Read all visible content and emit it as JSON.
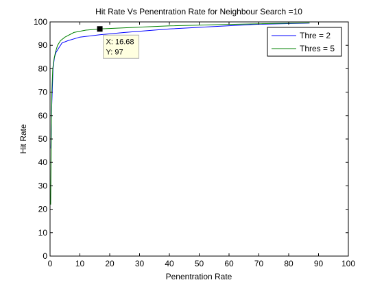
{
  "chart_data": {
    "type": "line",
    "title": "Hit Rate Vs Penentration Rate for Neighbour Search =10",
    "xlabel": "Penentration Rate",
    "ylabel": "Hit Rate",
    "xlim": [
      0,
      100
    ],
    "ylim": [
      0,
      100
    ],
    "xticks": [
      "0",
      "10",
      "20",
      "30",
      "40",
      "50",
      "60",
      "70",
      "80",
      "90",
      "100"
    ],
    "yticks": [
      "0",
      "10",
      "20",
      "30",
      "40",
      "50",
      "60",
      "70",
      "80",
      "90",
      "100"
    ],
    "grid": false,
    "legend_position": "top-right",
    "series": [
      {
        "name": "Thre = 2",
        "color": "#0000ff",
        "x": [
          0.3,
          0.5,
          0.8,
          1.0,
          1.5,
          2.0,
          3.0,
          4.0,
          6.0,
          10.0,
          16.68,
          25.0,
          40.0,
          55.0,
          70.0,
          87.0
        ],
        "y": [
          46,
          62,
          73,
          80,
          85,
          87,
          89,
          91,
          92,
          93.5,
          94.5,
          95.5,
          97,
          98,
          99,
          99.5
        ]
      },
      {
        "name": "Thres = 5",
        "color": "#008000",
        "x": [
          0.2,
          0.4,
          0.6,
          0.9,
          1.3,
          1.8,
          2.5,
          3.5,
          5.0,
          8.0,
          12.0,
          16.68,
          25.0,
          40.0,
          55.0,
          70.0,
          87.0
        ],
        "y": [
          22,
          50,
          70,
          80,
          84,
          87,
          90,
          92,
          93.5,
          95.5,
          96.5,
          97,
          97.5,
          98.3,
          98.8,
          99.2,
          99.6
        ]
      }
    ],
    "datatip": {
      "x_value": 16.68,
      "y_value": 97,
      "x_text": "X: 16.68",
      "y_text": "Y: 97"
    }
  }
}
